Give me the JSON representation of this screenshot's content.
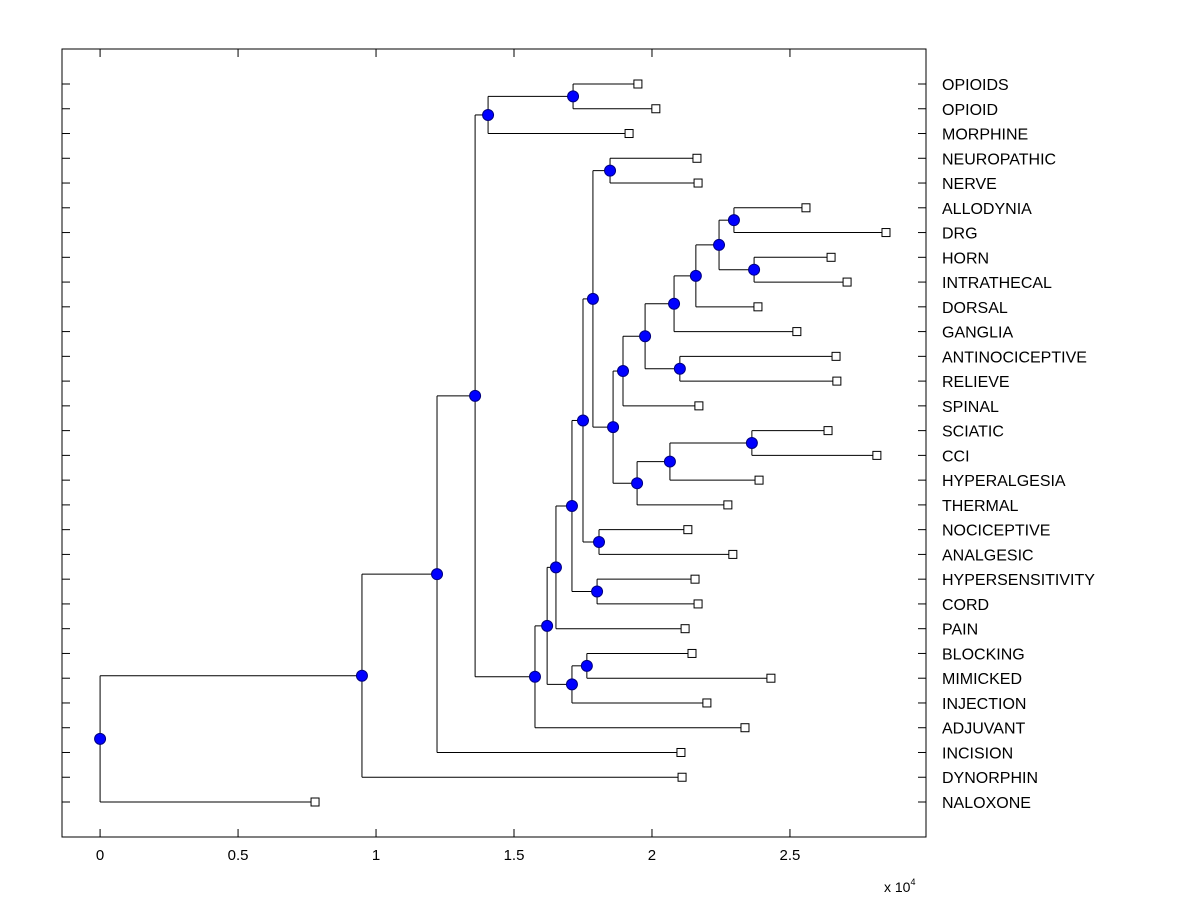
{
  "chart_data": {
    "type": "dendrogram",
    "title": "",
    "xlabel": "",
    "ylabel": "",
    "x_multiplier_label": "x 10",
    "x_multiplier_exponent": "4",
    "xlim": [
      -0.138,
      2.993
    ],
    "xticks": [
      0,
      0.5,
      1,
      1.5,
      2,
      2.5
    ],
    "xtick_labels": [
      "0",
      "0.5",
      "1",
      "1.5",
      "2",
      "2.5"
    ],
    "grid": false,
    "colors": {
      "node_fill": "#0000ff",
      "node_stroke": "#000080",
      "leaf_fill": "#ffffff",
      "line": "#000000"
    },
    "leaves": [
      {
        "label": "OPIOIDS",
        "x": 1.949
      },
      {
        "label": "OPIOID",
        "x": 2.014
      },
      {
        "label": "MORPHINE",
        "x": 1.917
      },
      {
        "label": "NEUROPATHIC",
        "x": 2.163
      },
      {
        "label": "NERVE",
        "x": 2.167
      },
      {
        "label": "ALLODYNIA",
        "x": 2.558
      },
      {
        "label": "DRG",
        "x": 2.848
      },
      {
        "label": "HORN",
        "x": 2.649
      },
      {
        "label": "INTRATHECAL",
        "x": 2.707
      },
      {
        "label": "DORSAL",
        "x": 2.384
      },
      {
        "label": "GANGLIA",
        "x": 2.525
      },
      {
        "label": "ANTINOCICEPTIVE",
        "x": 2.667
      },
      {
        "label": "RELIEVE",
        "x": 2.67
      },
      {
        "label": "SPINAL",
        "x": 2.17
      },
      {
        "label": "SCIATIC",
        "x": 2.638
      },
      {
        "label": "CCI",
        "x": 2.815
      },
      {
        "label": "HYPERALGESIA",
        "x": 2.388
      },
      {
        "label": "THERMAL",
        "x": 2.275
      },
      {
        "label": "NOCICEPTIVE",
        "x": 2.13
      },
      {
        "label": "ANALGESIC",
        "x": 2.293
      },
      {
        "label": "HYPERSENSITIVITY",
        "x": 2.156
      },
      {
        "label": "CORD",
        "x": 2.167
      },
      {
        "label": "PAIN",
        "x": 2.12
      },
      {
        "label": "BLOCKING",
        "x": 2.145
      },
      {
        "label": "MIMICKED",
        "x": 2.431
      },
      {
        "label": "INJECTION",
        "x": 2.199
      },
      {
        "label": "ADJUVANT",
        "x": 2.337
      },
      {
        "label": "INCISION",
        "x": 2.105
      },
      {
        "label": "DYNORPHIN",
        "x": 2.109
      },
      {
        "label": "NALOXONE",
        "x": 0.779
      }
    ],
    "tree": {
      "x": 0.0,
      "children": [
        {
          "x": 0.949,
          "children": [
            {
              "x": 1.221,
              "children": [
                {
                  "x": 1.359,
                  "children": [
                    {
                      "x": 1.406,
                      "children": [
                        {
                          "x": 1.714,
                          "children": [
                            {
                              "leaf": "OPIOIDS"
                            },
                            {
                              "leaf": "OPIOID"
                            }
                          ]
                        },
                        {
                          "leaf": "MORPHINE"
                        }
                      ]
                    },
                    {
                      "x": 1.576,
                      "children": [
                        {
                          "x": 1.62,
                          "children": [
                            {
                              "x": 1.652,
                              "children": [
                                {
                                  "x": 1.71,
                                  "children": [
                                    {
                                      "x": 1.75,
                                      "children": [
                                        {
                                          "x": 1.786,
                                          "children": [
                                            {
                                              "x": 1.848,
                                              "children": [
                                                {
                                                  "leaf": "NEUROPATHIC"
                                                },
                                                {
                                                  "leaf": "NERVE"
                                                }
                                              ]
                                            },
                                            {
                                              "x": 1.859,
                                              "children": [
                                                {
                                                  "x": 1.895,
                                                  "children": [
                                                    {
                                                      "x": 1.975,
                                                      "children": [
                                                        {
                                                          "x": 2.08,
                                                          "children": [
                                                            {
                                                              "x": 2.159,
                                                              "children": [
                                                                {
                                                                  "x": 2.243,
                                                                  "children": [
                                                                    {
                                                                      "x": 2.297,
                                                                      "children": [
                                                                        {
                                                                          "leaf": "ALLODYNIA"
                                                                        },
                                                                        {
                                                                          "leaf": "DRG"
                                                                        }
                                                                      ]
                                                                    },
                                                                    {
                                                                      "x": 2.37,
                                                                      "children": [
                                                                        {
                                                                          "leaf": "HORN"
                                                                        },
                                                                        {
                                                                          "leaf": "INTRATHECAL"
                                                                        }
                                                                      ]
                                                                    }
                                                                  ]
                                                                },
                                                                {
                                                                  "leaf": "DORSAL"
                                                                }
                                                              ]
                                                            },
                                                            {
                                                              "leaf": "GANGLIA"
                                                            }
                                                          ]
                                                        },
                                                        {
                                                          "x": 2.101,
                                                          "children": [
                                                            {
                                                              "leaf": "ANTINOCICEPTIVE"
                                                            },
                                                            {
                                                              "leaf": "RELIEVE"
                                                            }
                                                          ]
                                                        }
                                                      ]
                                                    },
                                                    {
                                                      "leaf": "SPINAL"
                                                    }
                                                  ]
                                                },
                                                {
                                                  "x": 1.946,
                                                  "children": [
                                                    {
                                                      "x": 2.065,
                                                      "children": [
                                                        {
                                                          "x": 2.362,
                                                          "children": [
                                                            {
                                                              "leaf": "SCIATIC"
                                                            },
                                                            {
                                                              "leaf": "CCI"
                                                            }
                                                          ]
                                                        },
                                                        {
                                                          "leaf": "HYPERALGESIA"
                                                        }
                                                      ]
                                                    },
                                                    {
                                                      "leaf": "THERMAL"
                                                    }
                                                  ]
                                                }
                                              ]
                                            }
                                          ]
                                        },
                                        {
                                          "x": 1.808,
                                          "children": [
                                            {
                                              "leaf": "NOCICEPTIVE"
                                            },
                                            {
                                              "leaf": "ANALGESIC"
                                            }
                                          ]
                                        }
                                      ]
                                    },
                                    {
                                      "x": 1.801,
                                      "children": [
                                        {
                                          "leaf": "HYPERSENSITIVITY"
                                        },
                                        {
                                          "leaf": "CORD"
                                        }
                                      ]
                                    }
                                  ]
                                },
                                {
                                  "leaf": "PAIN"
                                }
                              ]
                            },
                            {
                              "x": 1.71,
                              "children": [
                                {
                                  "x": 1.764,
                                  "children": [
                                    {
                                      "leaf": "BLOCKING"
                                    },
                                    {
                                      "leaf": "MIMICKED"
                                    }
                                  ]
                                },
                                {
                                  "leaf": "INJECTION"
                                }
                              ]
                            }
                          ]
                        },
                        {
                          "leaf": "ADJUVANT"
                        }
                      ]
                    }
                  ]
                },
                {
                  "leaf": "INCISION"
                }
              ]
            },
            {
              "leaf": "DYNORPHIN"
            }
          ]
        },
        {
          "leaf": "NALOXONE"
        }
      ]
    }
  }
}
